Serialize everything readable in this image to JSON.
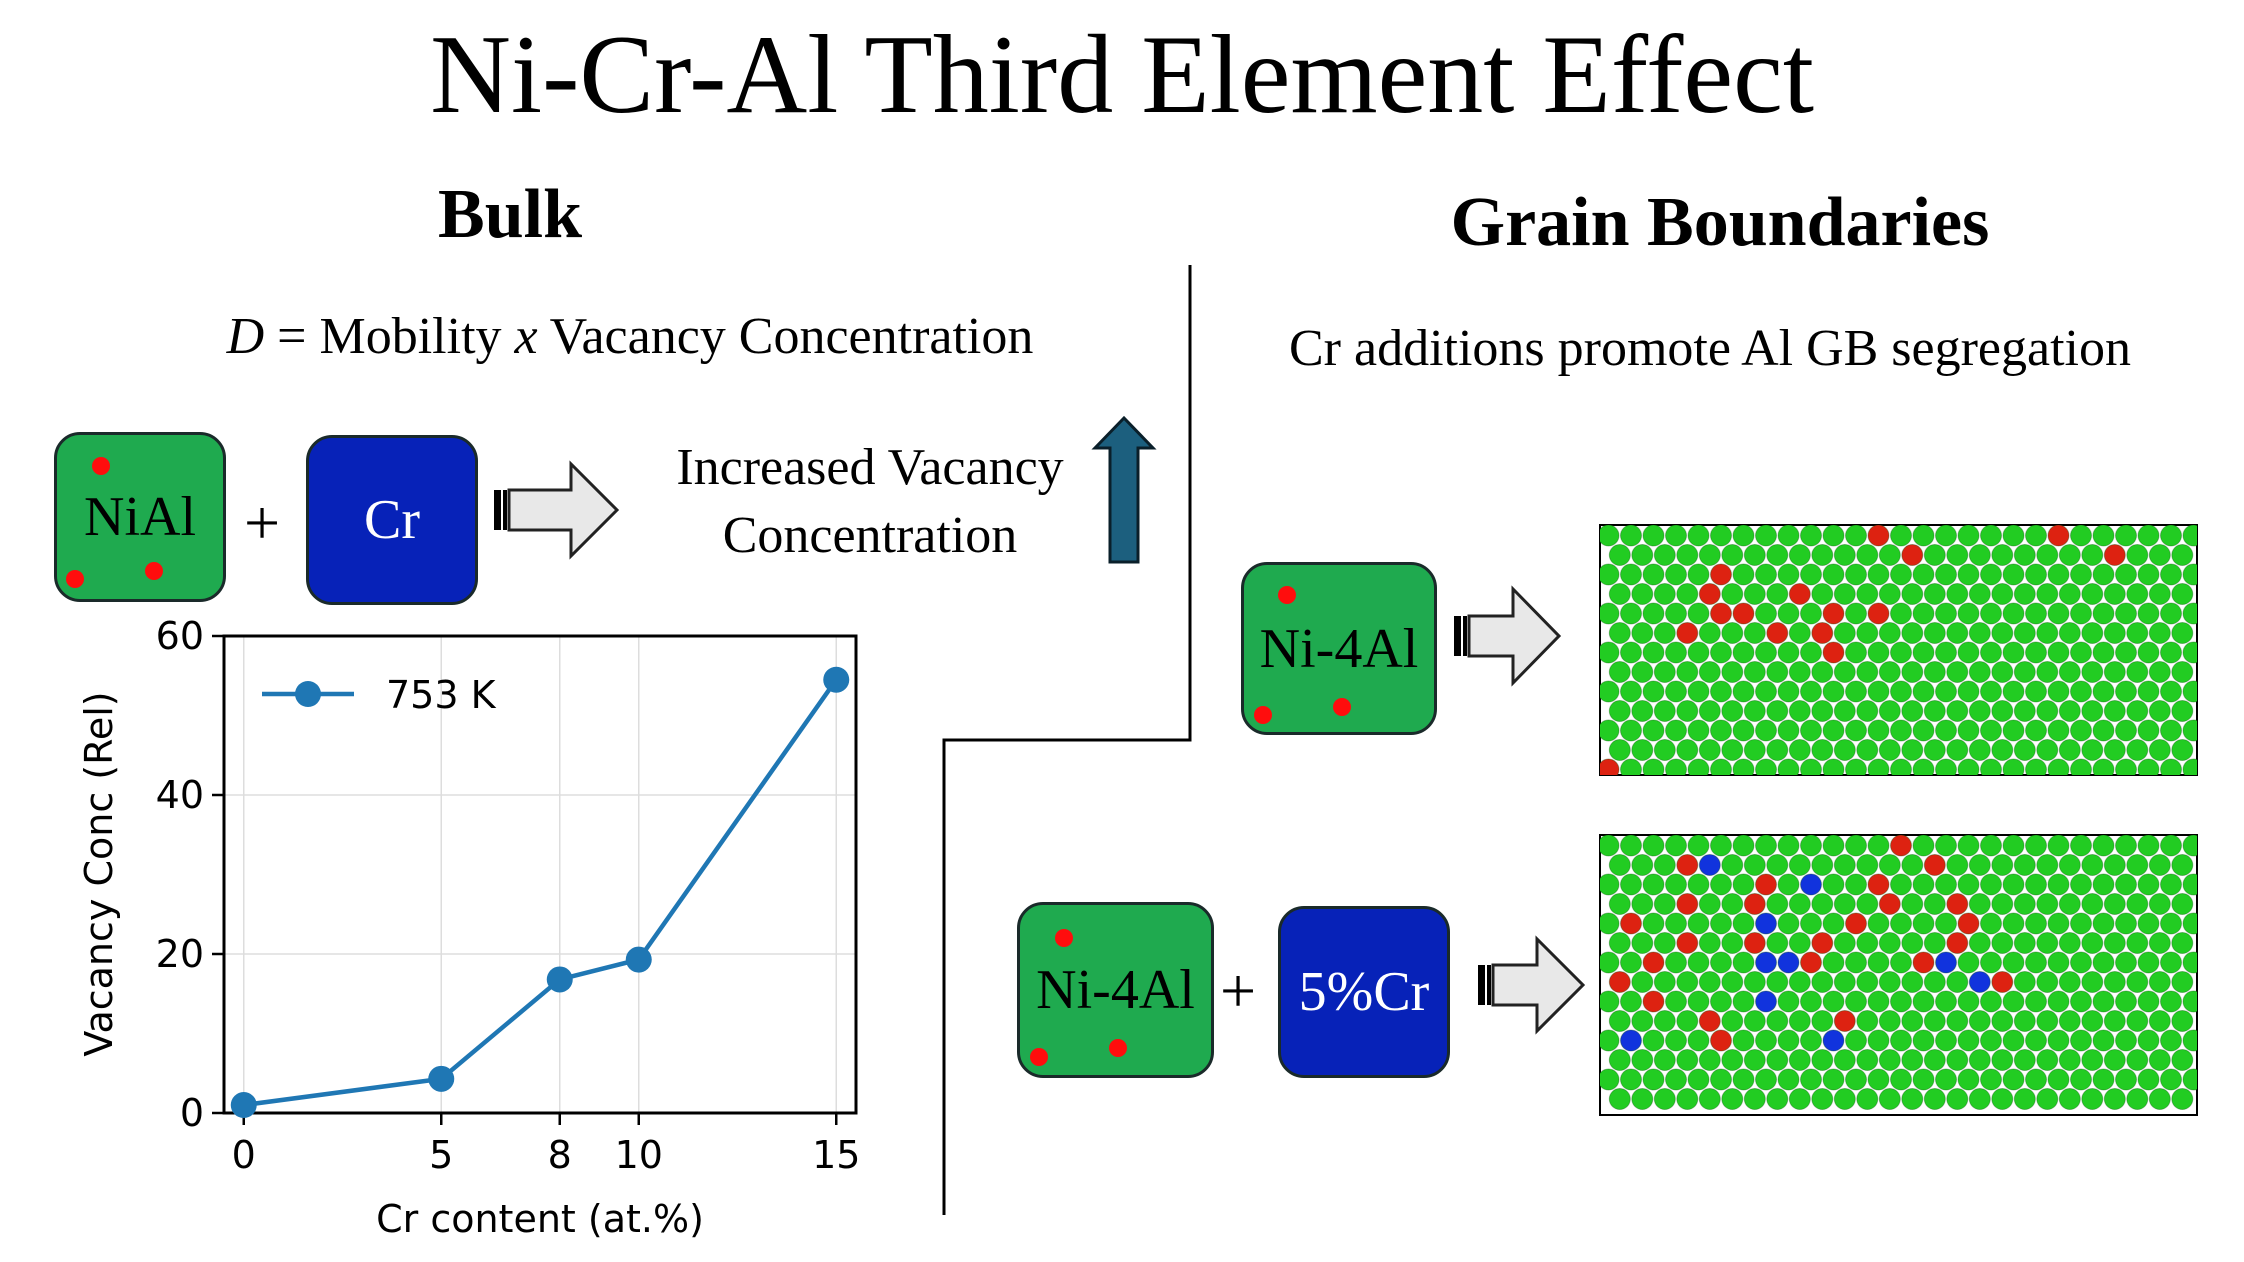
{
  "title": "Ni-Cr-Al Third Element Effect",
  "bulk": {
    "heading": "Bulk",
    "equation": {
      "D": "D",
      "equals": " = Mobility ",
      "x": "x",
      "rest": " Vacancy Concentration"
    },
    "box_nial": "NiAl",
    "plus": "+",
    "box_cr": "Cr",
    "increased_line1": "Increased Vacancy",
    "increased_line2": "Concentration",
    "up_arrow_color": "#1c5f7e"
  },
  "grain_boundaries": {
    "heading": "Grain Boundaries",
    "subtitle": "Cr additions promote Al GB segregation",
    "box_top": "Ni-4Al",
    "box_bottom": "Ni-4Al",
    "plus": "+",
    "box_cr": "5%Cr"
  },
  "colors": {
    "box_green": "#1faa4f",
    "box_blue": "#0722b8",
    "atom_ni": "#22cc22",
    "atom_al": "#dd2211",
    "atom_cr": "#1133dd",
    "series": "#1f77b4"
  },
  "chart_data": {
    "type": "line",
    "xlabel": "Cr content (at.%)",
    "ylabel": "Vacancy Conc (Rel)",
    "xlim": [
      -0.5,
      15.5
    ],
    "ylim": [
      0,
      60
    ],
    "xticks": [
      0,
      5,
      8,
      10,
      15
    ],
    "yticks": [
      0,
      20,
      40,
      60
    ],
    "grid": true,
    "legend_position": "top-left",
    "series": [
      {
        "name": "753 K",
        "x": [
          0,
          5,
          8,
          10,
          15
        ],
        "y": [
          1,
          4.3,
          16.8,
          19.3,
          54.5
        ]
      }
    ]
  }
}
